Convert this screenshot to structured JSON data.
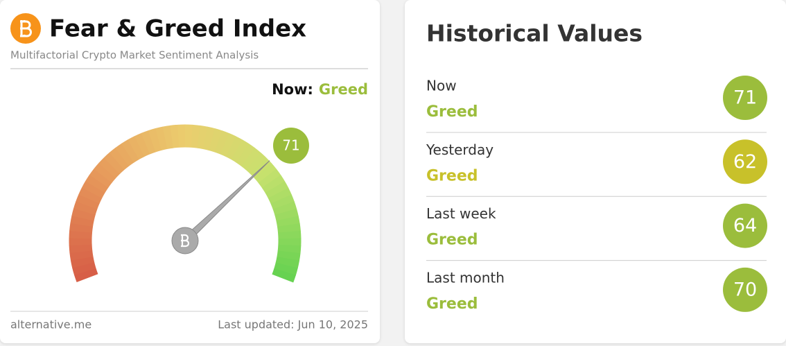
{
  "gauge_card": {
    "title": "Fear & Greed Index",
    "subtitle": "Multifactorial Crypto Market Sentiment Analysis",
    "now_label": "Now:",
    "classification": "Greed",
    "classification_color": "#9bbd3c",
    "value": 71,
    "value_color": "#9bbd3c",
    "lim": [
      0,
      100
    ],
    "source": "alternative.me",
    "updated": "Last updated: Jun 10, 2025"
  },
  "history_card": {
    "title": "Historical Values",
    "rows": [
      {
        "label": "Now",
        "classification": "Greed",
        "value": 71,
        "color": "#9bbd3c"
      },
      {
        "label": "Yesterday",
        "classification": "Greed",
        "value": 62,
        "color": "#c8c12a"
      },
      {
        "label": "Last week",
        "classification": "Greed",
        "value": 64,
        "color": "#9bbd3c"
      },
      {
        "label": "Last month",
        "classification": "Greed",
        "value": 70,
        "color": "#9bbd3c"
      }
    ]
  }
}
